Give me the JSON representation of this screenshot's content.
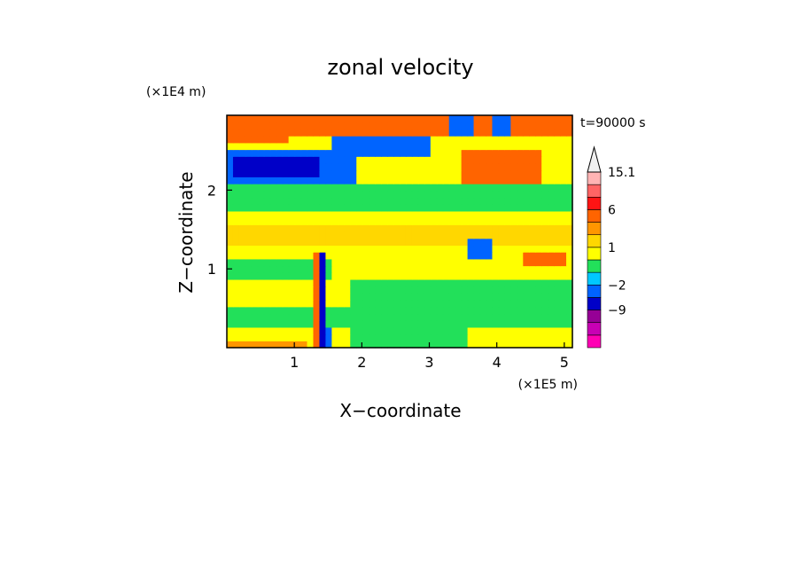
{
  "chart_data": {
    "type": "heatmap",
    "title": "zonal velocity",
    "xlabel": "X−coordinate",
    "ylabel": "Z−coordinate",
    "x_unit": "(×1E5 m)",
    "y_unit": "(×1E4 m)",
    "time_label": "t=90000 s",
    "xlim": [
      0,
      5.12
    ],
    "ylim": [
      0,
      2.95
    ],
    "xticks": [
      {
        "v": 1,
        "label": "1"
      },
      {
        "v": 2,
        "label": "2"
      },
      {
        "v": 3,
        "label": "3"
      },
      {
        "v": 4,
        "label": "4"
      },
      {
        "v": 5,
        "label": "5"
      }
    ],
    "yticks": [
      {
        "v": 1,
        "label": "1"
      },
      {
        "v": 2,
        "label": "2"
      }
    ],
    "colorbar": {
      "levels": [
        -15.1,
        -12,
        -9,
        -6,
        -2,
        -1,
        0,
        1,
        2,
        3,
        6,
        9,
        12,
        15.1
      ],
      "colors": [
        "#ff00b4",
        "#c800b4",
        "#960096",
        "#0000c8",
        "#0064ff",
        "#00c8ff",
        "#22e05a",
        "#ffff00",
        "#ffd700",
        "#ff9600",
        "#ff6400",
        "#ff1414",
        "#ff6464",
        "#ffb4b4",
        "#f0f0f0"
      ],
      "tick_labels": [
        "15.1",
        "6",
        "1",
        "−2",
        "−9"
      ],
      "tick_values": [
        15.1,
        6,
        1,
        -2,
        -9
      ]
    },
    "field": {
      "nx": 56,
      "nz": 34,
      "background_value": 0.4,
      "features": [
        {
          "kind": "band",
          "x0": 0,
          "x1": 5.12,
          "z0": 2.65,
          "z1": 2.95,
          "value": 3.2
        },
        {
          "kind": "band",
          "x0": 0.0,
          "x1": 1.9,
          "z0": 2.1,
          "z1": 2.5,
          "value": -3.5
        },
        {
          "kind": "band",
          "x0": 0.1,
          "x1": 1.4,
          "z0": 2.2,
          "z1": 2.4,
          "value": -6.5
        },
        {
          "kind": "band",
          "x0": 1.6,
          "x1": 3.0,
          "z0": 2.4,
          "z1": 2.7,
          "value": -3.0
        },
        {
          "kind": "band",
          "x0": 2.3,
          "x1": 2.9,
          "z0": 2.45,
          "z1": 2.6,
          "value": -6.0
        },
        {
          "kind": "band",
          "x0": 3.3,
          "x1": 5.1,
          "z0": 1.8,
          "z1": 2.05,
          "value": -3.0
        },
        {
          "kind": "band",
          "x0": 3.4,
          "x1": 4.3,
          "z0": 1.85,
          "z1": 1.95,
          "value": -6.0
        },
        {
          "kind": "band",
          "x0": 3.5,
          "x1": 4.7,
          "z0": 2.1,
          "z1": 2.5,
          "value": 4.5
        },
        {
          "kind": "band",
          "x0": 0.0,
          "x1": 0.9,
          "z0": 2.6,
          "z1": 2.8,
          "value": 4.0
        },
        {
          "kind": "band",
          "x0": 0.0,
          "x1": 5.12,
          "z0": 1.75,
          "z1": 2.05,
          "value": -0.6
        },
        {
          "kind": "band",
          "x0": 0.0,
          "x1": 5.12,
          "z0": 1.3,
          "z1": 1.55,
          "value": 1.8
        },
        {
          "kind": "band",
          "x0": 0.0,
          "x1": 1.6,
          "z0": 0.85,
          "z1": 1.15,
          "value": -0.6
        },
        {
          "kind": "band",
          "x0": 0.0,
          "x1": 5.12,
          "z0": 0.3,
          "z1": 0.55,
          "value": -0.5
        },
        {
          "kind": "band",
          "x0": 3.3,
          "x1": 5.12,
          "z0": 0.55,
          "z1": 0.85,
          "value": -0.6
        },
        {
          "kind": "band",
          "x0": 1.8,
          "x1": 3.6,
          "z0": 0.0,
          "z1": 0.9,
          "value": -0.4
        },
        {
          "kind": "band",
          "x0": 3.6,
          "x1": 3.9,
          "z0": 1.1,
          "z1": 1.4,
          "value": -3.0
        },
        {
          "kind": "band",
          "x0": 4.4,
          "x1": 5.0,
          "z0": 1.0,
          "z1": 1.2,
          "value": 3.2
        },
        {
          "kind": "band",
          "x0": 1.4,
          "x1": 1.5,
          "z0": 0.0,
          "z1": 1.2,
          "value": -6.5
        },
        {
          "kind": "band",
          "x0": 1.3,
          "x1": 1.4,
          "z0": 0.0,
          "z1": 1.2,
          "value": 4.5
        },
        {
          "kind": "band",
          "x0": 1.5,
          "x1": 1.6,
          "z0": 0.0,
          "z1": 0.3,
          "value": -3.5
        },
        {
          "kind": "band",
          "x0": 3.3,
          "x1": 3.7,
          "z0": 2.7,
          "z1": 2.95,
          "value": -4.0
        },
        {
          "kind": "band",
          "x0": 3.9,
          "x1": 4.2,
          "z0": 2.7,
          "z1": 2.95,
          "value": -5.0
        },
        {
          "kind": "band",
          "x0": 0.0,
          "x1": 1.2,
          "z0": 0.0,
          "z1": 0.1,
          "value": 2.2
        }
      ]
    }
  }
}
